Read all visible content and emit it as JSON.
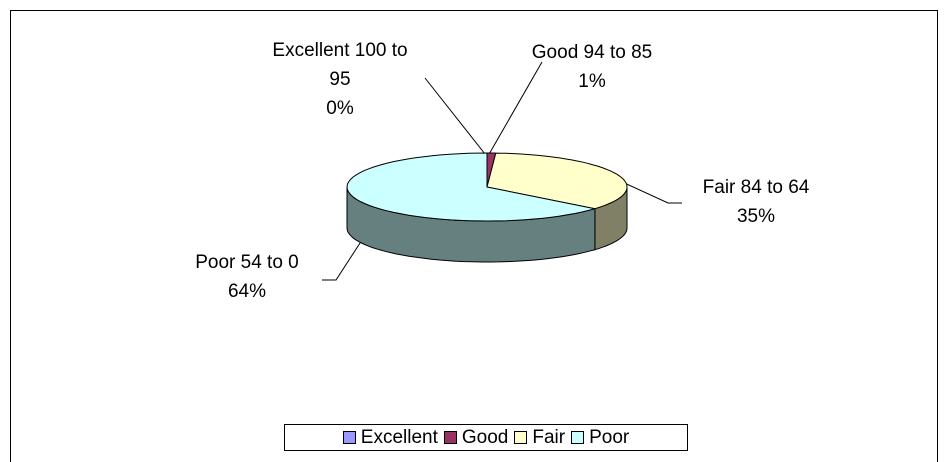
{
  "chart_data": {
    "type": "pie",
    "categories": [
      "Excellent",
      "Good",
      "Fair",
      "Poor"
    ],
    "label_names": [
      "Excellent 100 to 95",
      "Good 94 to 85",
      "Fair 84 to 64",
      "Poor 54 to 0"
    ],
    "values": [
      0,
      1,
      35,
      64
    ],
    "value_labels": [
      "0%",
      "1%",
      "35%",
      "64%"
    ],
    "colors": [
      "#9999ff",
      "#993366",
      "#ffffcc",
      "#ccffff"
    ],
    "legend": "bottom"
  }
}
